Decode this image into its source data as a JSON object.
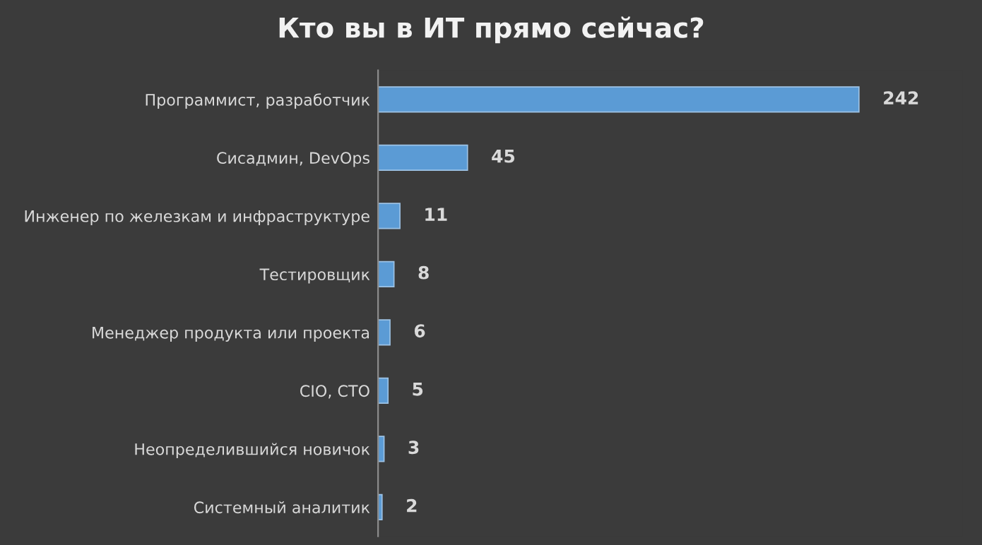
{
  "chart_data": {
    "type": "bar",
    "orientation": "horizontal",
    "title": "Кто вы в ИТ прямо сейчас?",
    "categories": [
      "Программист, разработчик",
      "Сисадмин, DevOps",
      "Инженер по железкам и инфраструктуре",
      "Тестировщик",
      "Менеджер продукта или проекта",
      "CIO, CTO",
      "Неопределившийся новичок",
      "Системный аналитик"
    ],
    "values": [
      242,
      45,
      11,
      8,
      6,
      5,
      3,
      2
    ],
    "color": "#5b9bd5",
    "data_labels": true,
    "grid": false,
    "legend": false
  }
}
